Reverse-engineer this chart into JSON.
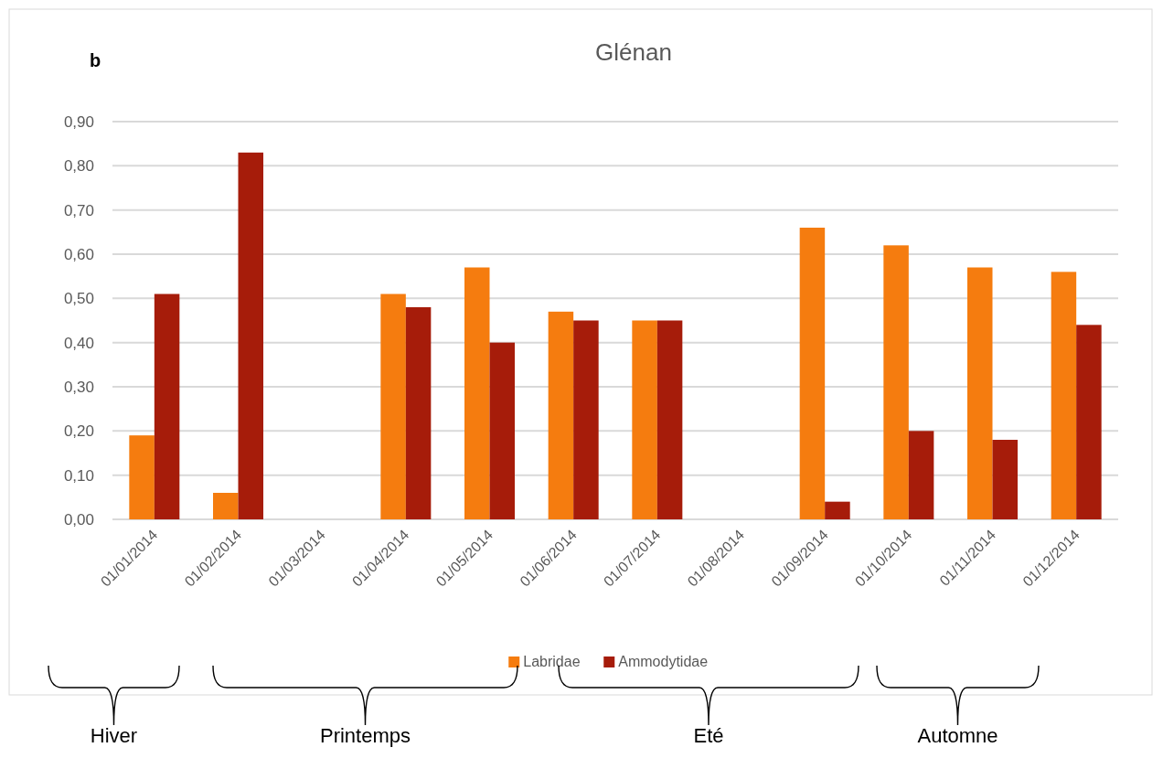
{
  "chart_data": {
    "type": "bar",
    "title": "Glénan",
    "categories": [
      "01/01/2014",
      "01/02/2014",
      "01/03/2014",
      "01/04/2014",
      "01/05/2014",
      "01/06/2014",
      "01/07/2014",
      "01/08/2014",
      "01/09/2014",
      "01/10/2014",
      "01/11/2014",
      "01/12/2014"
    ],
    "series": [
      {
        "name": "Labridae",
        "color": "#f57c0f",
        "values": [
          0.19,
          0.06,
          null,
          0.51,
          0.57,
          0.47,
          0.45,
          null,
          0.66,
          0.62,
          0.57,
          0.56
        ]
      },
      {
        "name": "Ammodytidae",
        "color": "#a61c0a",
        "values": [
          0.51,
          0.83,
          null,
          0.48,
          0.4,
          0.45,
          0.45,
          null,
          0.04,
          0.2,
          0.18,
          0.44
        ]
      }
    ],
    "ylim": [
      0,
      0.9
    ],
    "yticks": [
      {
        "value": 0,
        "label": "0,00"
      },
      {
        "value": 0.1,
        "label": "0,10"
      },
      {
        "value": 0.2,
        "label": "0,20"
      },
      {
        "value": 0.3,
        "label": "0,30"
      },
      {
        "value": 0.4,
        "label": "0,40"
      },
      {
        "value": 0.5,
        "label": "0,50"
      },
      {
        "value": 0.6,
        "label": "0,60"
      },
      {
        "value": 0.7,
        "label": "0,70"
      },
      {
        "value": 0.8,
        "label": "0,80"
      },
      {
        "value": 0.9,
        "label": "0,90"
      }
    ],
    "grid": "y",
    "legend": "bottom",
    "annotations": [
      "b",
      "Hiver",
      "Printemps",
      "Eté",
      "Automne"
    ]
  }
}
